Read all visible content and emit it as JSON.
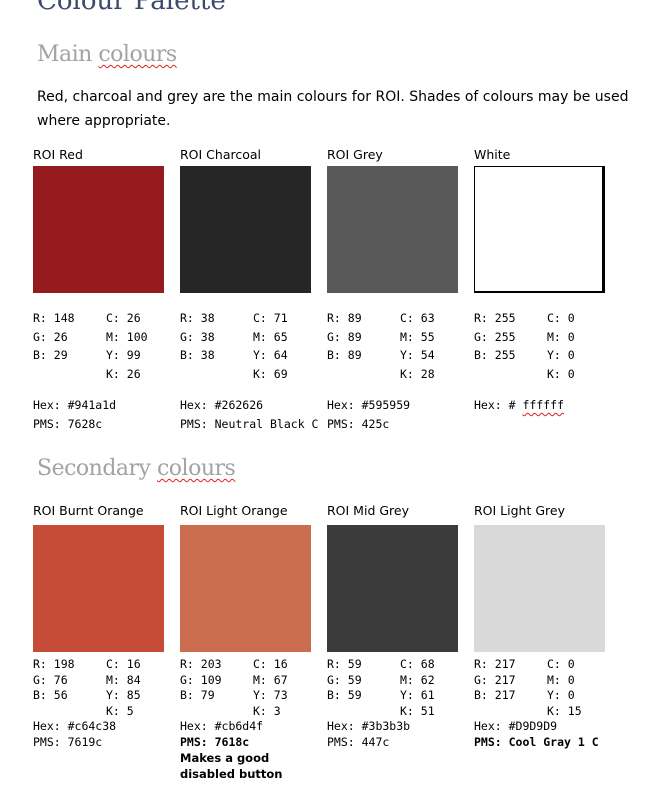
{
  "document": {
    "title": "Colour Palette"
  },
  "main_section": {
    "heading_word1": "Main",
    "heading_word2": "colours",
    "intro": "Red, charcoal and grey are the main colours for ROI. Shades of colours may be used where appropriate."
  },
  "secondary_section": {
    "heading_word1": "Secondary",
    "heading_word2": "colours"
  },
  "main_colours": [
    {
      "name": "ROI Red",
      "swatch": "#941a1d",
      "r": "R: 148",
      "g": "G: 26",
      "b": "B: 29",
      "c": "C: 26",
      "m": "M: 100",
      "y": "Y: 99",
      "k": "K: 26",
      "hex": "Hex: #941a1d",
      "pms": "PMS: 7628c"
    },
    {
      "name": "ROI Charcoal",
      "swatch": "#262626",
      "r": "R: 38",
      "g": "G: 38",
      "b": "B: 38",
      "c": "C: 71",
      "m": "M: 65",
      "y": "Y: 64",
      "k": "K: 69",
      "hex": "Hex: #262626",
      "pms": "PMS: Neutral Black C"
    },
    {
      "name": "ROI Grey",
      "swatch": "#595959",
      "r": "R: 89",
      "g": "G: 89",
      "b": "B: 89",
      "c": "C: 63",
      "m": "M: 55",
      "y": "Y: 54",
      "k": "K: 28",
      "hex": "Hex: #595959",
      "pms": "PMS: 425c"
    },
    {
      "name": "White",
      "swatch": "#ffffff",
      "r": "R: 255",
      "g": "G: 255",
      "b": "B: 255",
      "c": "C: 0",
      "m": "M: 0",
      "y": "Y: 0",
      "k": "K: 0",
      "hex_prefix": "Hex: # ",
      "hex_code": "ffffff",
      "pms": ""
    }
  ],
  "secondary_colours": [
    {
      "name": "ROI Burnt Orange",
      "swatch": "#c64c38",
      "r": "R: 198",
      "g": "G: 76",
      "b": "B: 56",
      "c": "C: 16",
      "m": "M: 84",
      "y": "Y: 85",
      "k": "K: 5",
      "hex": "Hex: #c64c38",
      "pms": "PMS: 7619c",
      "note": ""
    },
    {
      "name": "ROI Light Orange",
      "swatch": "#cb6d4f",
      "r": "R: 203",
      "g": "G: 109",
      "b": "B: 79",
      "c": "C: 16",
      "m": "M: 67",
      "y": "Y: 73",
      "k": "K: 3",
      "hex": "Hex: #cb6d4f",
      "pms": "PMS: 7618c",
      "note_line1": "Makes a good",
      "note_line2": "disabled button"
    },
    {
      "name": "ROI Mid Grey",
      "swatch": "#3b3b3b",
      "r": "R: 59",
      "g": "G: 59",
      "b": "B: 59",
      "c": "C: 68",
      "m": "M: 62",
      "y": "Y: 61",
      "k": "K: 51",
      "hex": "Hex: #3b3b3b",
      "pms": "PMS: 447c",
      "note": ""
    },
    {
      "name": "ROI Light Grey",
      "swatch": "#D9D9D9",
      "r": "R: 217",
      "g": "G: 217",
      "b": "B: 217",
      "c": "C: 0",
      "m": "M: 0",
      "y": "Y: 0",
      "k": "K: 15",
      "hex": "Hex: #D9D9D9",
      "pms": "PMS: Cool Gray 1 C",
      "note": ""
    }
  ]
}
